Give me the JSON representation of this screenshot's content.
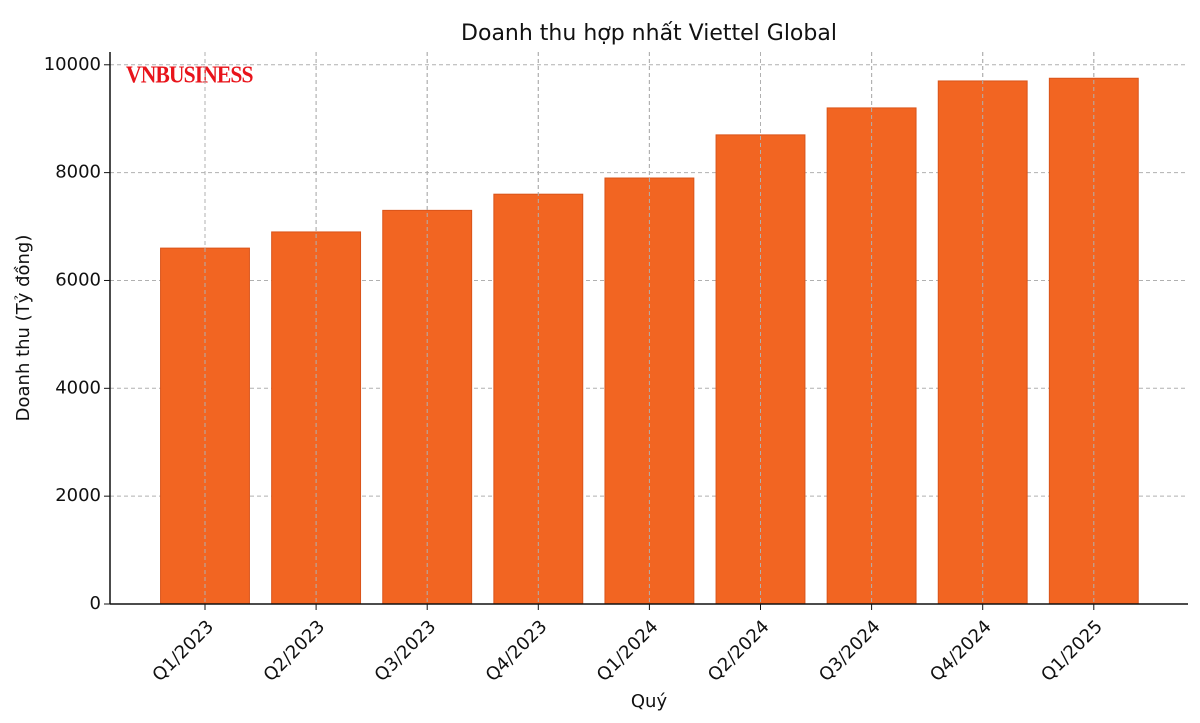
{
  "chart_data": {
    "type": "bar",
    "title": "Doanh thu hợp nhất Viettel Global",
    "watermark": "VNBUSINESS",
    "x_label": "Quý",
    "y_label": "Doanh thu (Tỷ đồng)",
    "categories": [
      "Q1/2023",
      "Q2/2023",
      "Q3/2023",
      "Q4/2023",
      "Q1/2024",
      "Q2/2024",
      "Q3/2024",
      "Q4/2024",
      "Q1/2025"
    ],
    "values": [
      6600,
      6900,
      7300,
      7600,
      7900,
      8700,
      9200,
      9700,
      9750
    ],
    "color": "#f26522",
    "ylim": [
      0,
      10237
    ],
    "yticks": [
      0,
      2000,
      4000,
      6000,
      8000,
      10000
    ],
    "grid": true
  }
}
